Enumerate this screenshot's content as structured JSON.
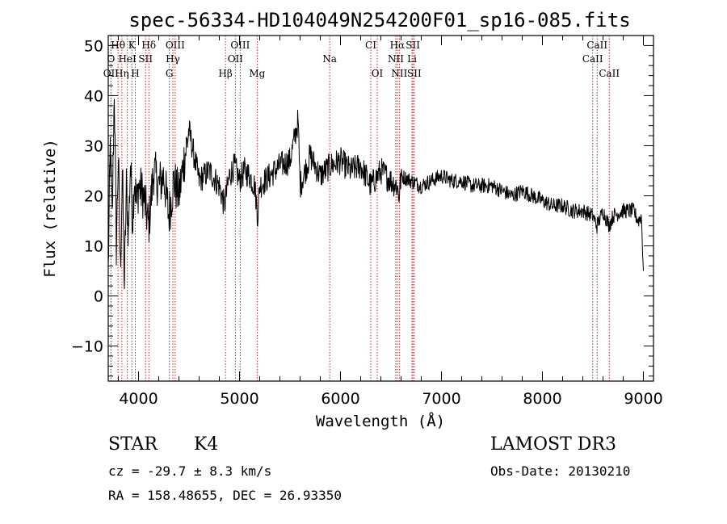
{
  "chart_data": {
    "type": "line",
    "title": "spec-56334-HD104049N254200F01_sp16-085.fits",
    "xlabel": "Wavelength (Å)",
    "ylabel": "Flux (relative)",
    "xlim": [
      3700,
      9100
    ],
    "ylim": [
      -17,
      52
    ],
    "xticks": [
      4000,
      5000,
      6000,
      7000,
      8000,
      9000
    ],
    "yticks": [
      -10,
      0,
      10,
      20,
      30,
      40,
      50
    ],
    "series": [
      {
        "name": "flux",
        "x": [
          3700,
          3720,
          3740,
          3760,
          3780,
          3800,
          3820,
          3840,
          3860,
          3880,
          3900,
          3920,
          3940,
          3960,
          3980,
          4000,
          4050,
          4100,
          4150,
          4200,
          4250,
          4300,
          4350,
          4400,
          4450,
          4500,
          4600,
          4700,
          4800,
          4850,
          4900,
          4950,
          5000,
          5050,
          5100,
          5150,
          5180,
          5200,
          5300,
          5400,
          5500,
          5580,
          5600,
          5700,
          5800,
          5900,
          6000,
          6100,
          6200,
          6300,
          6400,
          6500,
          6560,
          6580,
          6600,
          6700,
          6800,
          6900,
          7000,
          7100,
          7200,
          7300,
          7400,
          7500,
          7600,
          7700,
          7800,
          7900,
          8000,
          8100,
          8200,
          8300,
          8400,
          8500,
          8540,
          8600,
          8660,
          8700,
          8800,
          8900,
          8950,
          8980,
          9000
        ],
        "y": [
          5,
          30,
          15,
          42,
          10,
          28,
          5,
          25,
          2,
          22,
          12,
          27,
          15,
          24,
          18,
          22,
          20,
          14,
          25,
          22,
          24,
          16,
          23,
          20,
          27,
          33,
          23,
          25,
          22,
          18,
          24,
          26,
          23,
          25,
          24,
          22,
          16,
          22,
          24,
          26,
          27,
          35,
          22,
          28,
          24,
          26,
          27,
          25,
          26,
          22,
          25,
          23,
          22,
          20,
          24,
          23,
          22,
          23,
          24,
          23,
          23,
          22,
          22,
          22,
          21,
          20,
          21,
          20,
          19,
          18,
          18,
          17,
          17,
          16,
          14,
          17,
          14,
          16,
          17,
          17,
          15,
          16,
          5
        ]
      }
    ],
    "lines": [
      {
        "label": "Hθ",
        "x": 3797,
        "row": 0
      },
      {
        "label": "K",
        "x": 3934,
        "row": 0
      },
      {
        "label": "Hδ",
        "x": 4102,
        "row": 0
      },
      {
        "label": "OIII",
        "x": 4363,
        "row": 0
      },
      {
        "label": "OIII",
        "x": 5007,
        "row": 0
      },
      {
        "label": "CI",
        "x": 6300,
        "row": 0
      },
      {
        "label": "Hα",
        "x": 6563,
        "row": 0
      },
      {
        "label": "SII",
        "x": 6717,
        "row": 0
      },
      {
        "label": "CaII",
        "x": 8542,
        "row": 0
      },
      {
        "label": "O",
        "x": 3727,
        "row": 1
      },
      {
        "label": "HeI",
        "x": 3889,
        "row": 1
      },
      {
        "label": "SII",
        "x": 4070,
        "row": 1
      },
      {
        "label": "Hγ",
        "x": 4340,
        "row": 1
      },
      {
        "label": "OII",
        "x": 4959,
        "row": 1
      },
      {
        "label": "Na",
        "x": 5893,
        "row": 1
      },
      {
        "label": "NII",
        "x": 6548,
        "row": 1
      },
      {
        "label": "Li",
        "x": 6708,
        "row": 1
      },
      {
        "label": "CaII",
        "x": 8498,
        "row": 1
      },
      {
        "label": "OII",
        "x": 3727,
        "row": 2
      },
      {
        "label": "Hη",
        "x": 3835,
        "row": 2
      },
      {
        "label": "H",
        "x": 3968,
        "row": 2
      },
      {
        "label": "G",
        "x": 4305,
        "row": 2
      },
      {
        "label": "Hβ",
        "x": 4861,
        "row": 2
      },
      {
        "label": "Mg",
        "x": 5175,
        "row": 2
      },
      {
        "label": "OI",
        "x": 6364,
        "row": 2
      },
      {
        "label": "NII",
        "x": 6583,
        "row": 2
      },
      {
        "label": "SII",
        "x": 6731,
        "row": 2
      },
      {
        "label": "CaII",
        "x": 8662,
        "row": 2
      }
    ]
  },
  "info": {
    "object_class": "STAR",
    "subclass": "K4",
    "cz": "cz = -29.7 ± 8.3 km/s",
    "coords": "RA = 158.48655, DEC =  26.93350",
    "survey": "LAMOST DR3",
    "obs_date": "Obs-Date: 20130210"
  }
}
